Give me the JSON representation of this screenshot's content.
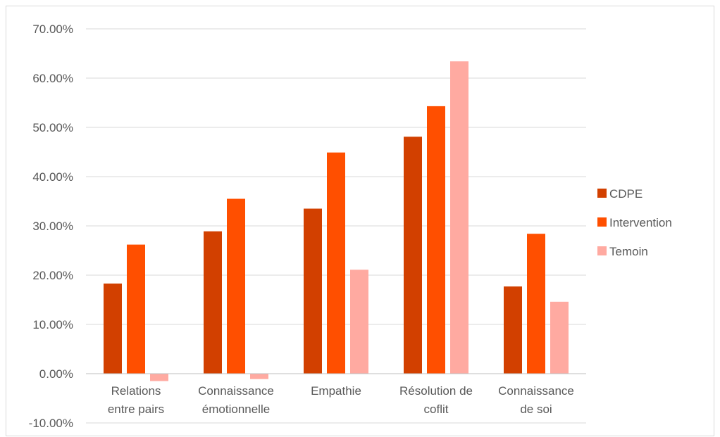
{
  "chart_data": {
    "type": "bar",
    "title": "",
    "xlabel": "",
    "ylabel": "",
    "ylim": [
      -0.1,
      0.7
    ],
    "yticks": [
      -0.1,
      0.0,
      0.1,
      0.2,
      0.3,
      0.4,
      0.5,
      0.6,
      0.7
    ],
    "ytick_labels": [
      "-10.00%",
      "0.00%",
      "10.00%",
      "20.00%",
      "30.00%",
      "40.00%",
      "50.00%",
      "60.00%",
      "70.00%"
    ],
    "grid": true,
    "legend_position": "right",
    "categories": [
      [
        "Relations",
        "entre pairs"
      ],
      [
        "Connaissance",
        "émotionnelle"
      ],
      [
        "Empathie"
      ],
      [
        "Résolution de",
        "coflit"
      ],
      [
        "Connaissance",
        "de soi"
      ]
    ],
    "series": [
      {
        "name": "CDPE",
        "color": "#d24000",
        "values": [
          0.183,
          0.289,
          0.335,
          0.481,
          0.177
        ]
      },
      {
        "name": "Intervention",
        "color": "#ff4f00",
        "values": [
          0.262,
          0.355,
          0.449,
          0.543,
          0.284
        ]
      },
      {
        "name": "Temoin",
        "color": "#ffaaa1",
        "values": [
          -0.015,
          -0.011,
          0.211,
          0.634,
          0.146
        ]
      }
    ]
  }
}
